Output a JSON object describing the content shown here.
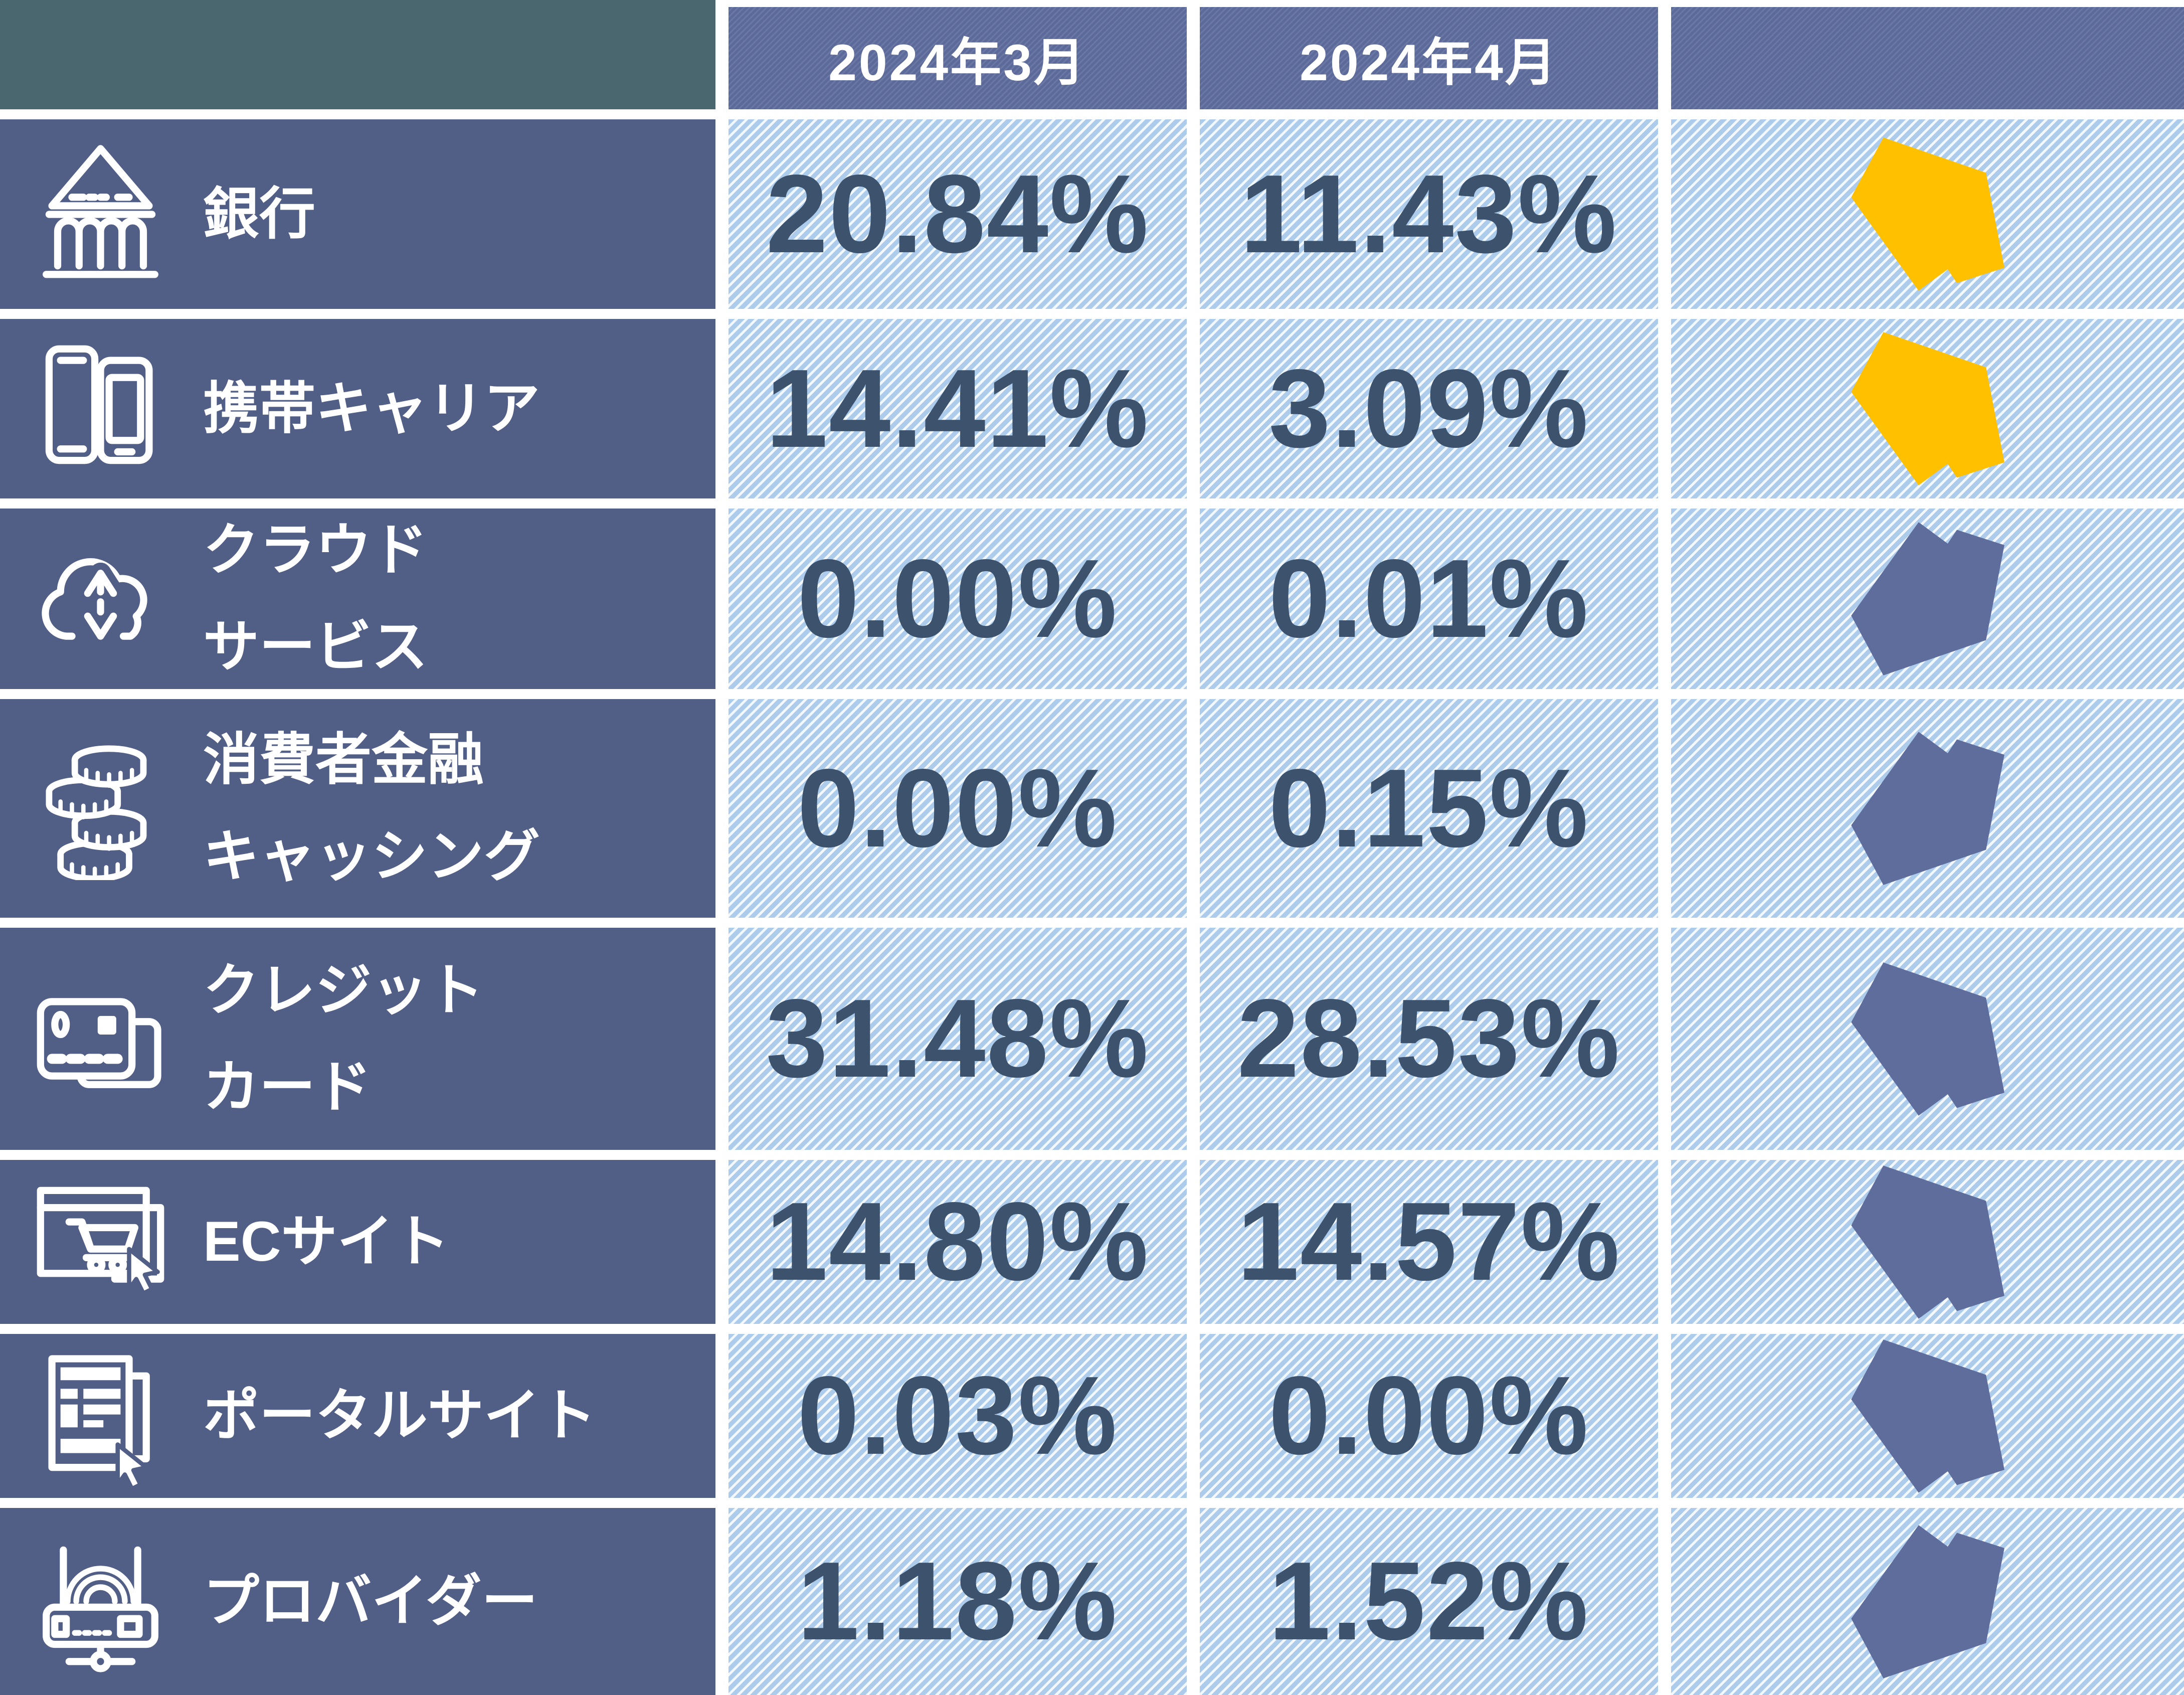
{
  "header": {
    "columns": [
      "2024年3月",
      "2024年4月",
      ""
    ]
  },
  "rows": [
    {
      "category_lines": [
        "銀行"
      ],
      "icon": "bank",
      "march": "20.84%",
      "april": "11.43%",
      "trend": "down",
      "arrow_color": "yellow"
    },
    {
      "category_lines": [
        "携帯キャリア"
      ],
      "icon": "smartphones",
      "march": "14.41%",
      "april": "3.09%",
      "trend": "down",
      "arrow_color": "yellow"
    },
    {
      "category_lines": [
        "クラウド",
        "サービス"
      ],
      "icon": "cloud-transfer",
      "march": "0.00%",
      "april": "0.01%",
      "trend": "up",
      "arrow_color": "blue"
    },
    {
      "category_lines": [
        "消費者金融",
        "キャッシング"
      ],
      "icon": "coins",
      "march": "0.00%",
      "april": "0.15%",
      "trend": "up",
      "arrow_color": "blue"
    },
    {
      "category_lines": [
        "クレジット",
        "カード"
      ],
      "icon": "credit-card",
      "march": "31.48%",
      "april": "28.53%",
      "trend": "down",
      "arrow_color": "blue"
    },
    {
      "category_lines": [
        "ECサイト"
      ],
      "icon": "ec-site",
      "march": "14.80%",
      "april": "14.57%",
      "trend": "down",
      "arrow_color": "blue"
    },
    {
      "category_lines": [
        "ポータルサイト"
      ],
      "icon": "portal-site",
      "march": "0.03%",
      "april": "0.00%",
      "trend": "down",
      "arrow_color": "blue"
    },
    {
      "category_lines": [
        "プロバイダー"
      ],
      "icon": "router",
      "march": "1.18%",
      "april": "1.52%",
      "trend": "up",
      "arrow_color": "blue"
    }
  ],
  "colors": {
    "corner_teal": "#4a6770",
    "header_blue": "#5c6a99",
    "header_stripe": "#6b78a5",
    "category_bg": "#515e86",
    "cell_blue": "#adccec",
    "cell_stripe": "#f3f8fd",
    "value_text": "#3c526d",
    "arrow_yellow": "#ffc000",
    "arrow_blue": "#5f6d9d",
    "grid_gap": "#ffffff",
    "icon_line": "#ffffff"
  },
  "chart_data": {
    "type": "table",
    "columns": [
      "",
      "2024年3月",
      "2024年4月",
      ""
    ],
    "rows": [
      [
        "銀行",
        "20.84%",
        "11.43%",
        "down"
      ],
      [
        "携帯キャリア",
        "14.41%",
        "3.09%",
        "down"
      ],
      [
        "クラウドサービス",
        "0.00%",
        "0.01%",
        "up"
      ],
      [
        "消費者金融キャッシング",
        "0.00%",
        "0.15%",
        "up"
      ],
      [
        "クレジットカード",
        "31.48%",
        "28.53%",
        "down"
      ],
      [
        "ECサイト",
        "14.80%",
        "14.57%",
        "down"
      ],
      [
        "ポータルサイト",
        "0.03%",
        "0.00%",
        "down"
      ],
      [
        "プロバイダー",
        "1.18%",
        "1.52%",
        "up"
      ]
    ]
  }
}
